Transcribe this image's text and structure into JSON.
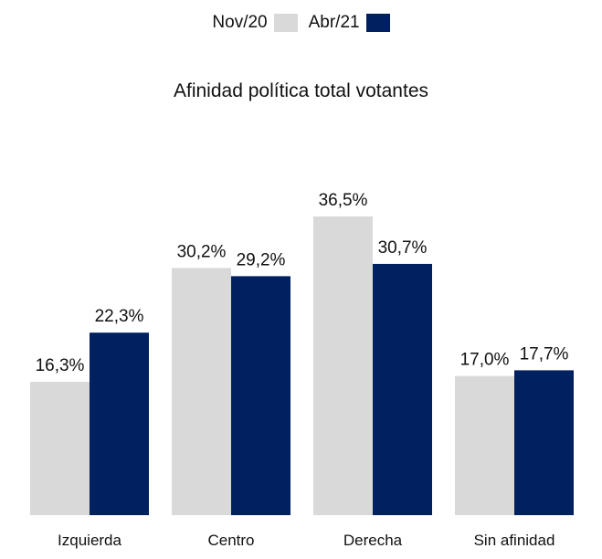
{
  "chart_data": {
    "type": "bar",
    "title": "Afinidad política total votantes",
    "xlabel": "",
    "ylabel": "",
    "ylim": [
      0,
      40
    ],
    "grid": false,
    "legend_position": "top-center",
    "categories": [
      "Izquierda",
      "Centro",
      "Derecha",
      "Sin afinidad"
    ],
    "series": [
      {
        "name": "Nov/20",
        "color": "#d9d9d9",
        "values": [
          16.3,
          30.2,
          36.5,
          17.0
        ],
        "labels": [
          "16,3%",
          "30,2%",
          "36,5%",
          "17,0%"
        ]
      },
      {
        "name": "Abr/21",
        "color": "#002060",
        "values": [
          22.3,
          29.2,
          30.7,
          17.7
        ],
        "labels": [
          "22,3%",
          "29,2%",
          "30,7%",
          "17,7%"
        ]
      }
    ]
  }
}
